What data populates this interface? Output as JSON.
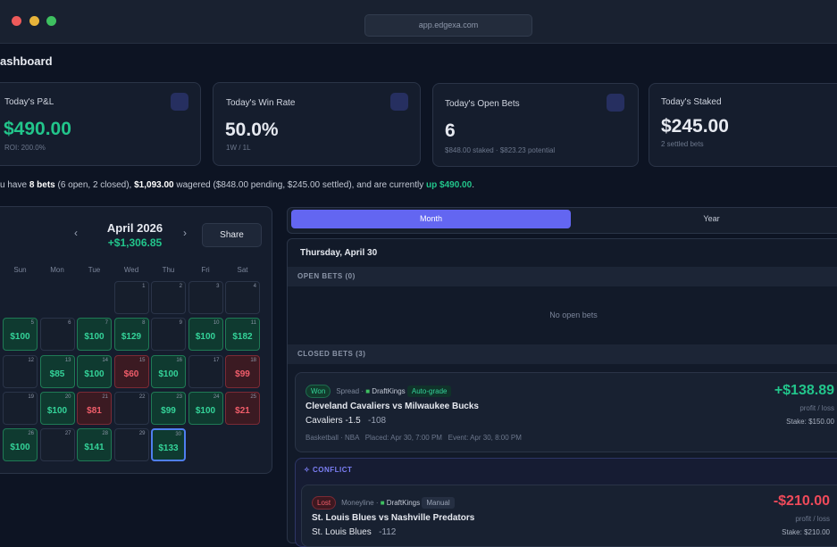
{
  "window": {
    "url": "app.edgexa.com"
  },
  "header": {
    "title": "ashboard"
  },
  "stats": [
    {
      "title": "Today's P&L",
      "value": "$490.00",
      "sub": "ROI: 200.0%"
    },
    {
      "title": "Today's Win Rate",
      "value": "50.0%",
      "sub": "1W / 1L"
    },
    {
      "title": "Today's Open Bets",
      "value": "6",
      "sub": "$848.00 staked · $823.23 potential"
    },
    {
      "title": "Today's Staked",
      "value": "$245.00",
      "sub": "2 settled bets"
    }
  ],
  "summary": [
    "u have ",
    "8 bets",
    " (6 open, 2 closed), ",
    "$1,093.00",
    " wagered ($848.00 pending, $245.00 settled), and are currently ",
    "up $490.00",
    "."
  ],
  "calendar": {
    "month": "April 2026",
    "total": "+$1,306.85",
    "share": "Share",
    "weekdays": [
      "Sun",
      "Mon",
      "Tue",
      "Wed",
      "Thu",
      "Fri",
      "Sat"
    ],
    "weeks": [
      [
        null,
        null,
        null,
        {
          "day": "1"
        },
        {
          "day": "2"
        },
        {
          "day": "3"
        },
        {
          "day": "4"
        }
      ],
      [
        {
          "day": "5",
          "amount": "$100",
          "color": "green"
        },
        {
          "day": "6"
        },
        {
          "day": "7",
          "amount": "$100",
          "color": "green"
        },
        {
          "day": "8",
          "amount": "$129",
          "color": "green"
        },
        {
          "day": "9"
        },
        {
          "day": "10",
          "amount": "$100",
          "color": "green"
        },
        {
          "day": "11",
          "amount": "$182",
          "color": "green"
        }
      ],
      [
        {
          "day": "12"
        },
        {
          "day": "13",
          "amount": "$85",
          "color": "green"
        },
        {
          "day": "14",
          "amount": "$100",
          "color": "green"
        },
        {
          "day": "15",
          "amount": "$60",
          "color": "red"
        },
        {
          "day": "16",
          "amount": "$100",
          "color": "green"
        },
        {
          "day": "17"
        },
        {
          "day": "18",
          "amount": "$99",
          "color": "red"
        }
      ],
      [
        {
          "day": "19"
        },
        {
          "day": "20",
          "amount": "$100",
          "color": "green"
        },
        {
          "day": "21",
          "amount": "$81",
          "color": "red"
        },
        {
          "day": "22"
        },
        {
          "day": "23",
          "amount": "$99",
          "color": "green"
        },
        {
          "day": "24",
          "amount": "$100",
          "color": "green"
        },
        {
          "day": "25",
          "amount": "$21",
          "color": "red"
        }
      ],
      [
        {
          "day": "26",
          "amount": "$100",
          "color": "green"
        },
        {
          "day": "27"
        },
        {
          "day": "28",
          "amount": "$141",
          "color": "green"
        },
        {
          "day": "29"
        },
        {
          "day": "30",
          "amount": "$133",
          "color": "green",
          "selected": true
        },
        null,
        null
      ]
    ]
  },
  "tabs": [
    "Month",
    "Year"
  ],
  "day": {
    "title": "Thursday, April 30",
    "open_header": "OPEN BETS (0)",
    "open_empty": "No open bets",
    "closed_header": "CLOSED BETS (3)",
    "conflict": "CONFLICT",
    "bets": [
      {
        "status": "Won",
        "market": "Spread",
        "book": "DraftKings",
        "tag": "Auto-grade",
        "event": "Cleveland Cavaliers vs Milwaukee Bucks",
        "pick": "Cavaliers -1.5",
        "odds": "-108",
        "meta": "Basketball · NBA   Placed: Apr 30, 7:00 PM   Event: Apr 30, 8:00 PM",
        "pl": "+$138.89",
        "pl_label": "profit / loss",
        "stake": "Stake: $150.00"
      },
      {
        "status": "Lost",
        "market": "Moneyline",
        "book": "DraftKings",
        "tag": "Manual",
        "event": "St. Louis Blues vs Nashville Predators",
        "pick": "St. Louis Blues",
        "odds": "-112",
        "pl": "-$210.00",
        "pl_label": "profit / loss",
        "stake": "Stake: $210.00"
      }
    ]
  }
}
